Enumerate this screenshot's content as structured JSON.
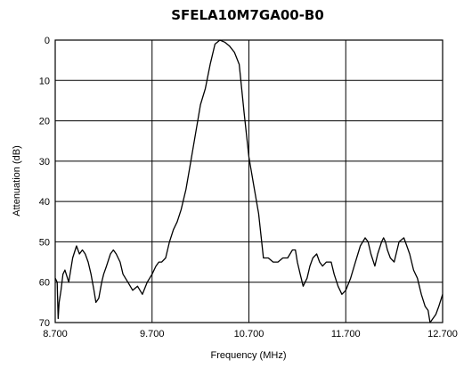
{
  "chart_data": {
    "type": "line",
    "title": "SFELA10M7GA00-B0",
    "xlabel": "Frequency (MHz)",
    "ylabel": "Attenuation (dB)",
    "xlim": [
      8.7,
      12.7
    ],
    "ylim": [
      0,
      70
    ],
    "y_inverted": true,
    "grid": true,
    "x_ticks": [
      {
        "value": 8.7,
        "label": "8.700"
      },
      {
        "value": 9.7,
        "label": "9.700"
      },
      {
        "value": 10.7,
        "label": "10.700"
      },
      {
        "value": 11.7,
        "label": "11.700"
      },
      {
        "value": 12.7,
        "label": "12.700"
      }
    ],
    "y_ticks": [
      {
        "value": 0,
        "label": "0"
      },
      {
        "value": 10,
        "label": "10"
      },
      {
        "value": 20,
        "label": "20"
      },
      {
        "value": 30,
        "label": "30"
      },
      {
        "value": 40,
        "label": "40"
      },
      {
        "value": 50,
        "label": "50"
      },
      {
        "value": 60,
        "label": "60"
      },
      {
        "value": 70,
        "label": "70"
      }
    ],
    "series": [
      {
        "x": [
          8.7,
          8.72,
          8.73,
          8.74,
          8.76,
          8.78,
          8.8,
          8.84,
          8.88,
          8.92,
          8.95,
          8.98,
          9.01,
          9.04,
          9.07,
          9.1,
          9.12,
          9.15,
          9.18,
          9.2,
          9.23,
          9.27,
          9.3,
          9.33,
          9.37,
          9.4,
          9.45,
          9.5,
          9.55,
          9.6,
          9.65,
          9.7,
          9.74,
          9.77,
          9.8,
          9.84,
          9.88,
          9.92,
          9.96,
          10.0,
          10.05,
          10.1,
          10.15,
          10.2,
          10.25,
          10.3,
          10.35,
          10.4,
          10.45,
          10.5,
          10.55,
          10.6,
          10.65,
          10.7,
          10.75,
          10.8,
          10.85,
          10.9,
          10.95,
          11.0,
          11.05,
          11.1,
          11.15,
          11.18,
          11.2,
          11.23,
          11.26,
          11.3,
          11.33,
          11.36,
          11.4,
          11.43,
          11.46,
          11.5,
          11.55,
          11.58,
          11.62,
          11.66,
          11.7,
          11.75,
          11.8,
          11.85,
          11.9,
          11.93,
          11.96,
          12.0,
          12.03,
          12.07,
          12.09,
          12.11,
          12.13,
          12.16,
          12.2,
          12.25,
          12.3,
          12.33,
          12.36,
          12.4,
          12.44,
          12.48,
          12.52,
          12.55,
          12.57,
          12.6,
          12.63,
          12.66,
          12.7
        ],
        "y": [
          59,
          60,
          69,
          65,
          62,
          58,
          57,
          60,
          54,
          51,
          53,
          52,
          53,
          55,
          58,
          62,
          65,
          64,
          60,
          58,
          56,
          53,
          52,
          53,
          55,
          58,
          60,
          62,
          61,
          63,
          60,
          58,
          56,
          55,
          55,
          54,
          50,
          47,
          45,
          42,
          37,
          30,
          23,
          16,
          12,
          6,
          1,
          0,
          0.5,
          1.5,
          3,
          6,
          18,
          29,
          36,
          43,
          54,
          54,
          55,
          55,
          54,
          54,
          52,
          52,
          55,
          58,
          61,
          59,
          56,
          54,
          53,
          55,
          56,
          55,
          55,
          58,
          61,
          63,
          62,
          59,
          55,
          51,
          49,
          50,
          53,
          56,
          53,
          50,
          49,
          50,
          52,
          54,
          55,
          50,
          49,
          51,
          53,
          57,
          59,
          63,
          66,
          67,
          70,
          69,
          68,
          66,
          63
        ]
      }
    ]
  }
}
